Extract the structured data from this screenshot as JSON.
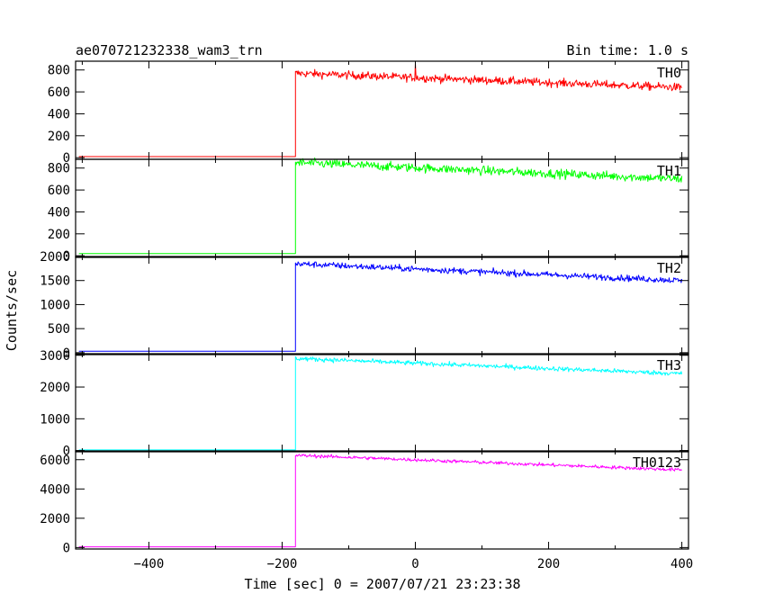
{
  "chart_data": {
    "type": "line",
    "title_left": "ae070721232338_wam3_trn",
    "title_right": "Bin time: 1.0 s",
    "xlabel": "Time [sec] 0 = 2007/07/21 23:23:38",
    "ylabel": "Counts/sec",
    "xlim": [
      -510,
      410
    ],
    "xticks": [
      -400,
      -200,
      0,
      200,
      400
    ],
    "x_onset": -180,
    "x_end": 400,
    "panels": [
      {
        "name": "TH0",
        "color": "#ff0000",
        "ylim": [
          -15,
          880
        ],
        "yticks": [
          0,
          200,
          400,
          600,
          800
        ],
        "pre_level": 10,
        "peak_level": 770,
        "end_level": 640,
        "noise": 25,
        "spike": {
          "x": 0,
          "y": 860
        }
      },
      {
        "name": "TH1",
        "color": "#00ff00",
        "ylim": [
          -15,
          880
        ],
        "yticks": [
          0,
          200,
          400,
          600,
          800
        ],
        "pre_level": 20,
        "peak_level": 850,
        "end_level": 700,
        "noise": 28
      },
      {
        "name": "TH2",
        "color": "#0000ff",
        "ylim": [
          -40,
          2000
        ],
        "yticks": [
          0,
          500,
          1000,
          1500,
          2000
        ],
        "pre_level": 30,
        "peak_level": 1850,
        "end_level": 1500,
        "noise": 45
      },
      {
        "name": "TH3",
        "color": "#00ffff",
        "ylim": [
          -40,
          3050
        ],
        "yticks": [
          0,
          1000,
          2000,
          3000
        ],
        "pre_level": 20,
        "peak_level": 2900,
        "end_level": 2420,
        "noise": 50
      },
      {
        "name": "TH0123",
        "color": "#ff00ff",
        "ylim": [
          -100,
          6600
        ],
        "yticks": [
          0,
          2000,
          4000,
          6000
        ],
        "pre_level": 50,
        "peak_level": 6300,
        "end_level": 5300,
        "noise": 80
      }
    ]
  }
}
